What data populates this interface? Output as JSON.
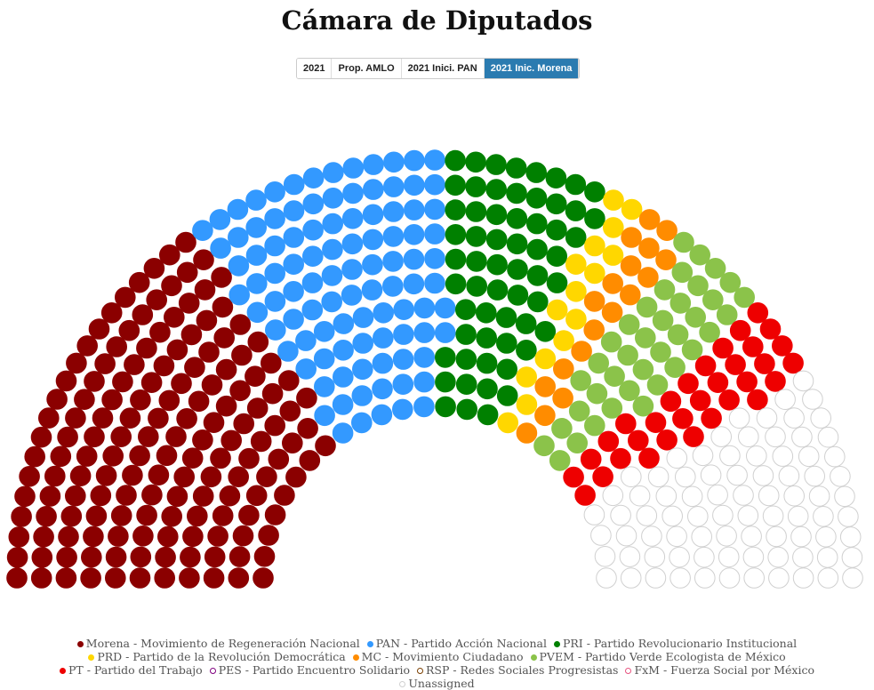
{
  "chart_data": {
    "type": "parliament",
    "title": "Cámara de Diputados",
    "scenarios": [
      "2021",
      "Prop. AMLO",
      "2021 Inici. PAN",
      "2021 Inic. Morena"
    ],
    "selected_scenario": 3,
    "series": [
      {
        "name": "Morena - Movimiento de Regeneración Nacional",
        "color": "#8b0000",
        "value": 155
      },
      {
        "name": "PAN - Partido Acción Nacional",
        "color": "#3399ff",
        "value": 100
      },
      {
        "name": "PRI - Partido Revolucionario Institucional",
        "color": "#008000",
        "value": 60
      },
      {
        "name": "PRD - Partido de la Revolución Democrática",
        "color": "#ffd700",
        "value": 15
      },
      {
        "name": "MC - Movimiento Ciudadano",
        "color": "#ff8c00",
        "value": 18
      },
      {
        "name": "PVEM - Partido Verde Ecologista de México",
        "color": "#8bc34a",
        "value": 38
      },
      {
        "name": "PT - Partido del Trabajo",
        "color": "#ee0000",
        "value": 32
      },
      {
        "name": "PES - Partido Encuentro Solidario",
        "color": "#800080",
        "value": 0
      },
      {
        "name": "RSP - Redes Sociales Progresistas",
        "color": "#7b3f00",
        "value": 0
      },
      {
        "name": "FxM - Fuerza Social por México",
        "color": "#e75480",
        "value": 0
      },
      {
        "name": "Unassigned",
        "color": "#d0d0d0",
        "value": 82,
        "hollow": true
      }
    ]
  }
}
